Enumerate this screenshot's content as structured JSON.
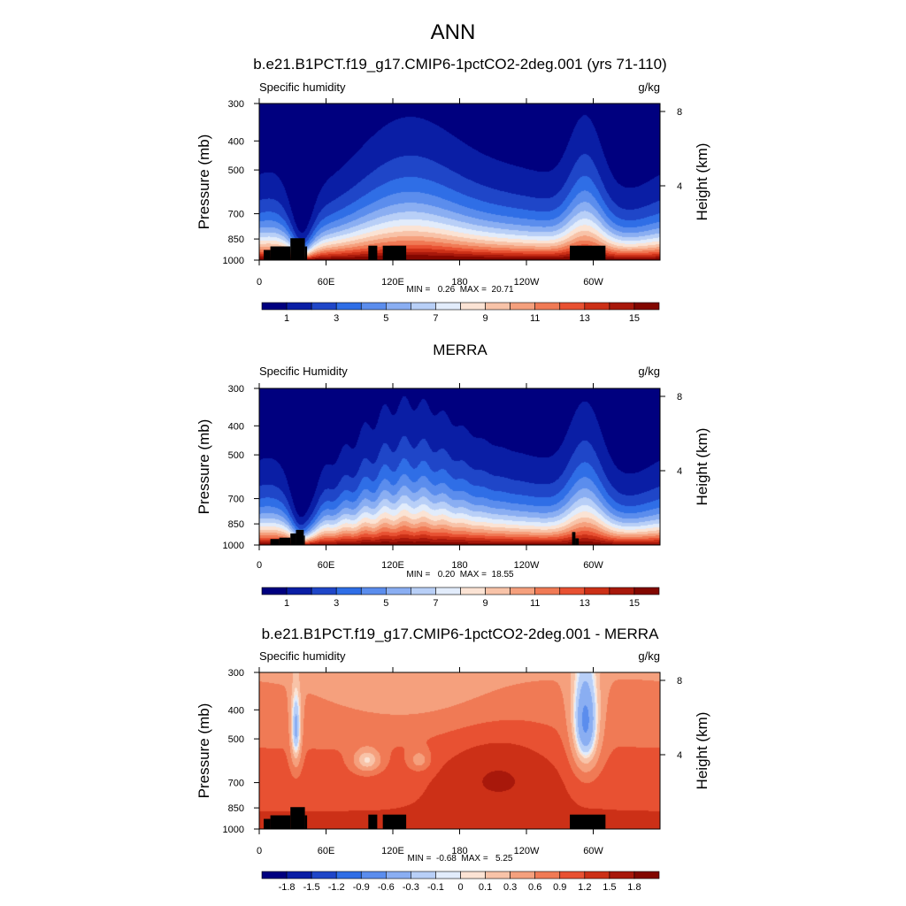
{
  "figure_title": "ANN",
  "chart_data": [
    {
      "type": "heatmap",
      "title": "b.e21.B1PCT.f19_g17.CMIP6-1pctCO2-2deg.001 (yrs 71-110)",
      "left_label": "Specific humidity",
      "units": "g/kg",
      "ylabel": "Pressure (mb)",
      "ylabel_right": "Height (km)",
      "x_ticks": [
        "0",
        "60E",
        "120E",
        "180",
        "120W",
        "60W"
      ],
      "x_tick_lon": [
        0,
        60,
        120,
        180,
        240,
        300
      ],
      "xlim": [
        0,
        360
      ],
      "y_ticks": [
        "300",
        "400",
        "500",
        "700",
        "850",
        "1000"
      ],
      "y_tick_values": [
        300,
        400,
        500,
        700,
        850,
        1000
      ],
      "ylim": [
        300,
        1000
      ],
      "y_scale": "log",
      "height_ticks": [
        "8",
        "4"
      ],
      "height_tick_km": [
        8,
        4
      ],
      "stats": "MIN =   0.26  MAX =  20.71",
      "min": 0.26,
      "max": 20.71,
      "colorbar_labels": [
        "1",
        "3",
        "5",
        "7",
        "9",
        "11",
        "13",
        "15"
      ],
      "colorbar_colors": [
        "#00007f",
        "#0a1ea5",
        "#1f46c8",
        "#2f6ee6",
        "#5b8ded",
        "#8aaef2",
        "#b8cff7",
        "#e2ecfb",
        "#fbe3d4",
        "#f8c3a8",
        "#f5a07d",
        "#f07a55",
        "#e85132",
        "#cc3017",
        "#a8180b",
        "#820700"
      ],
      "field": "humidity_model",
      "land_mask": "model"
    },
    {
      "type": "heatmap",
      "title": "MERRA",
      "left_label": "Specific Humidity",
      "units": "g/kg",
      "ylabel": "Pressure (mb)",
      "ylabel_right": "Height (km)",
      "x_ticks": [
        "0",
        "60E",
        "120E",
        "180",
        "120W",
        "60W"
      ],
      "x_tick_lon": [
        0,
        60,
        120,
        180,
        240,
        300
      ],
      "xlim": [
        0,
        360
      ],
      "y_ticks": [
        "300",
        "400",
        "500",
        "700",
        "850",
        "1000"
      ],
      "y_tick_values": [
        300,
        400,
        500,
        700,
        850,
        1000
      ],
      "ylim": [
        300,
        1000
      ],
      "y_scale": "log",
      "height_ticks": [
        "8",
        "4"
      ],
      "height_tick_km": [
        8,
        4
      ],
      "stats": "MIN =   0.20  MAX =  18.55",
      "min": 0.2,
      "max": 18.55,
      "colorbar_labels": [
        "1",
        "3",
        "5",
        "7",
        "9",
        "11",
        "13",
        "15"
      ],
      "colorbar_colors": [
        "#00007f",
        "#0a1ea5",
        "#1f46c8",
        "#2f6ee6",
        "#5b8ded",
        "#8aaef2",
        "#b8cff7",
        "#e2ecfb",
        "#fbe3d4",
        "#f8c3a8",
        "#f5a07d",
        "#f07a55",
        "#e85132",
        "#cc3017",
        "#a8180b",
        "#820700"
      ],
      "field": "humidity_obs",
      "land_mask": "obs"
    },
    {
      "type": "heatmap",
      "title": "b.e21.B1PCT.f19_g17.CMIP6-1pctCO2-2deg.001 - MERRA",
      "left_label": "Specific humidity",
      "units": "g/kg",
      "ylabel": "Pressure (mb)",
      "ylabel_right": "Height (km)",
      "x_ticks": [
        "0",
        "60E",
        "120E",
        "180",
        "120W",
        "60W"
      ],
      "x_tick_lon": [
        0,
        60,
        120,
        180,
        240,
        300
      ],
      "xlim": [
        0,
        360
      ],
      "y_ticks": [
        "300",
        "400",
        "500",
        "700",
        "850",
        "1000"
      ],
      "y_tick_values": [
        300,
        400,
        500,
        700,
        850,
        1000
      ],
      "ylim": [
        300,
        1000
      ],
      "y_scale": "log",
      "height_ticks": [
        "8",
        "4"
      ],
      "height_tick_km": [
        8,
        4
      ],
      "stats": "MIN =  -0.68  MAX =   5.25",
      "min": -0.68,
      "max": 5.25,
      "colorbar_labels": [
        "-1.8",
        "-1.5",
        "-1.2",
        "-0.9",
        "-0.6",
        "-0.3",
        "-0.1",
        "0",
        "0.1",
        "0.3",
        "0.6",
        "0.9",
        "1.2",
        "1.5",
        "1.8"
      ],
      "colorbar_colors": [
        "#00007f",
        "#0a1ea5",
        "#1f46c8",
        "#2f6ee6",
        "#5b8ded",
        "#8aaef2",
        "#b8cff7",
        "#e2ecfb",
        "#fbe3d4",
        "#f8c3a8",
        "#f5a07d",
        "#f07a55",
        "#e85132",
        "#cc3017",
        "#a8180b",
        "#820700"
      ],
      "field": "difference",
      "land_mask": "model"
    }
  ]
}
